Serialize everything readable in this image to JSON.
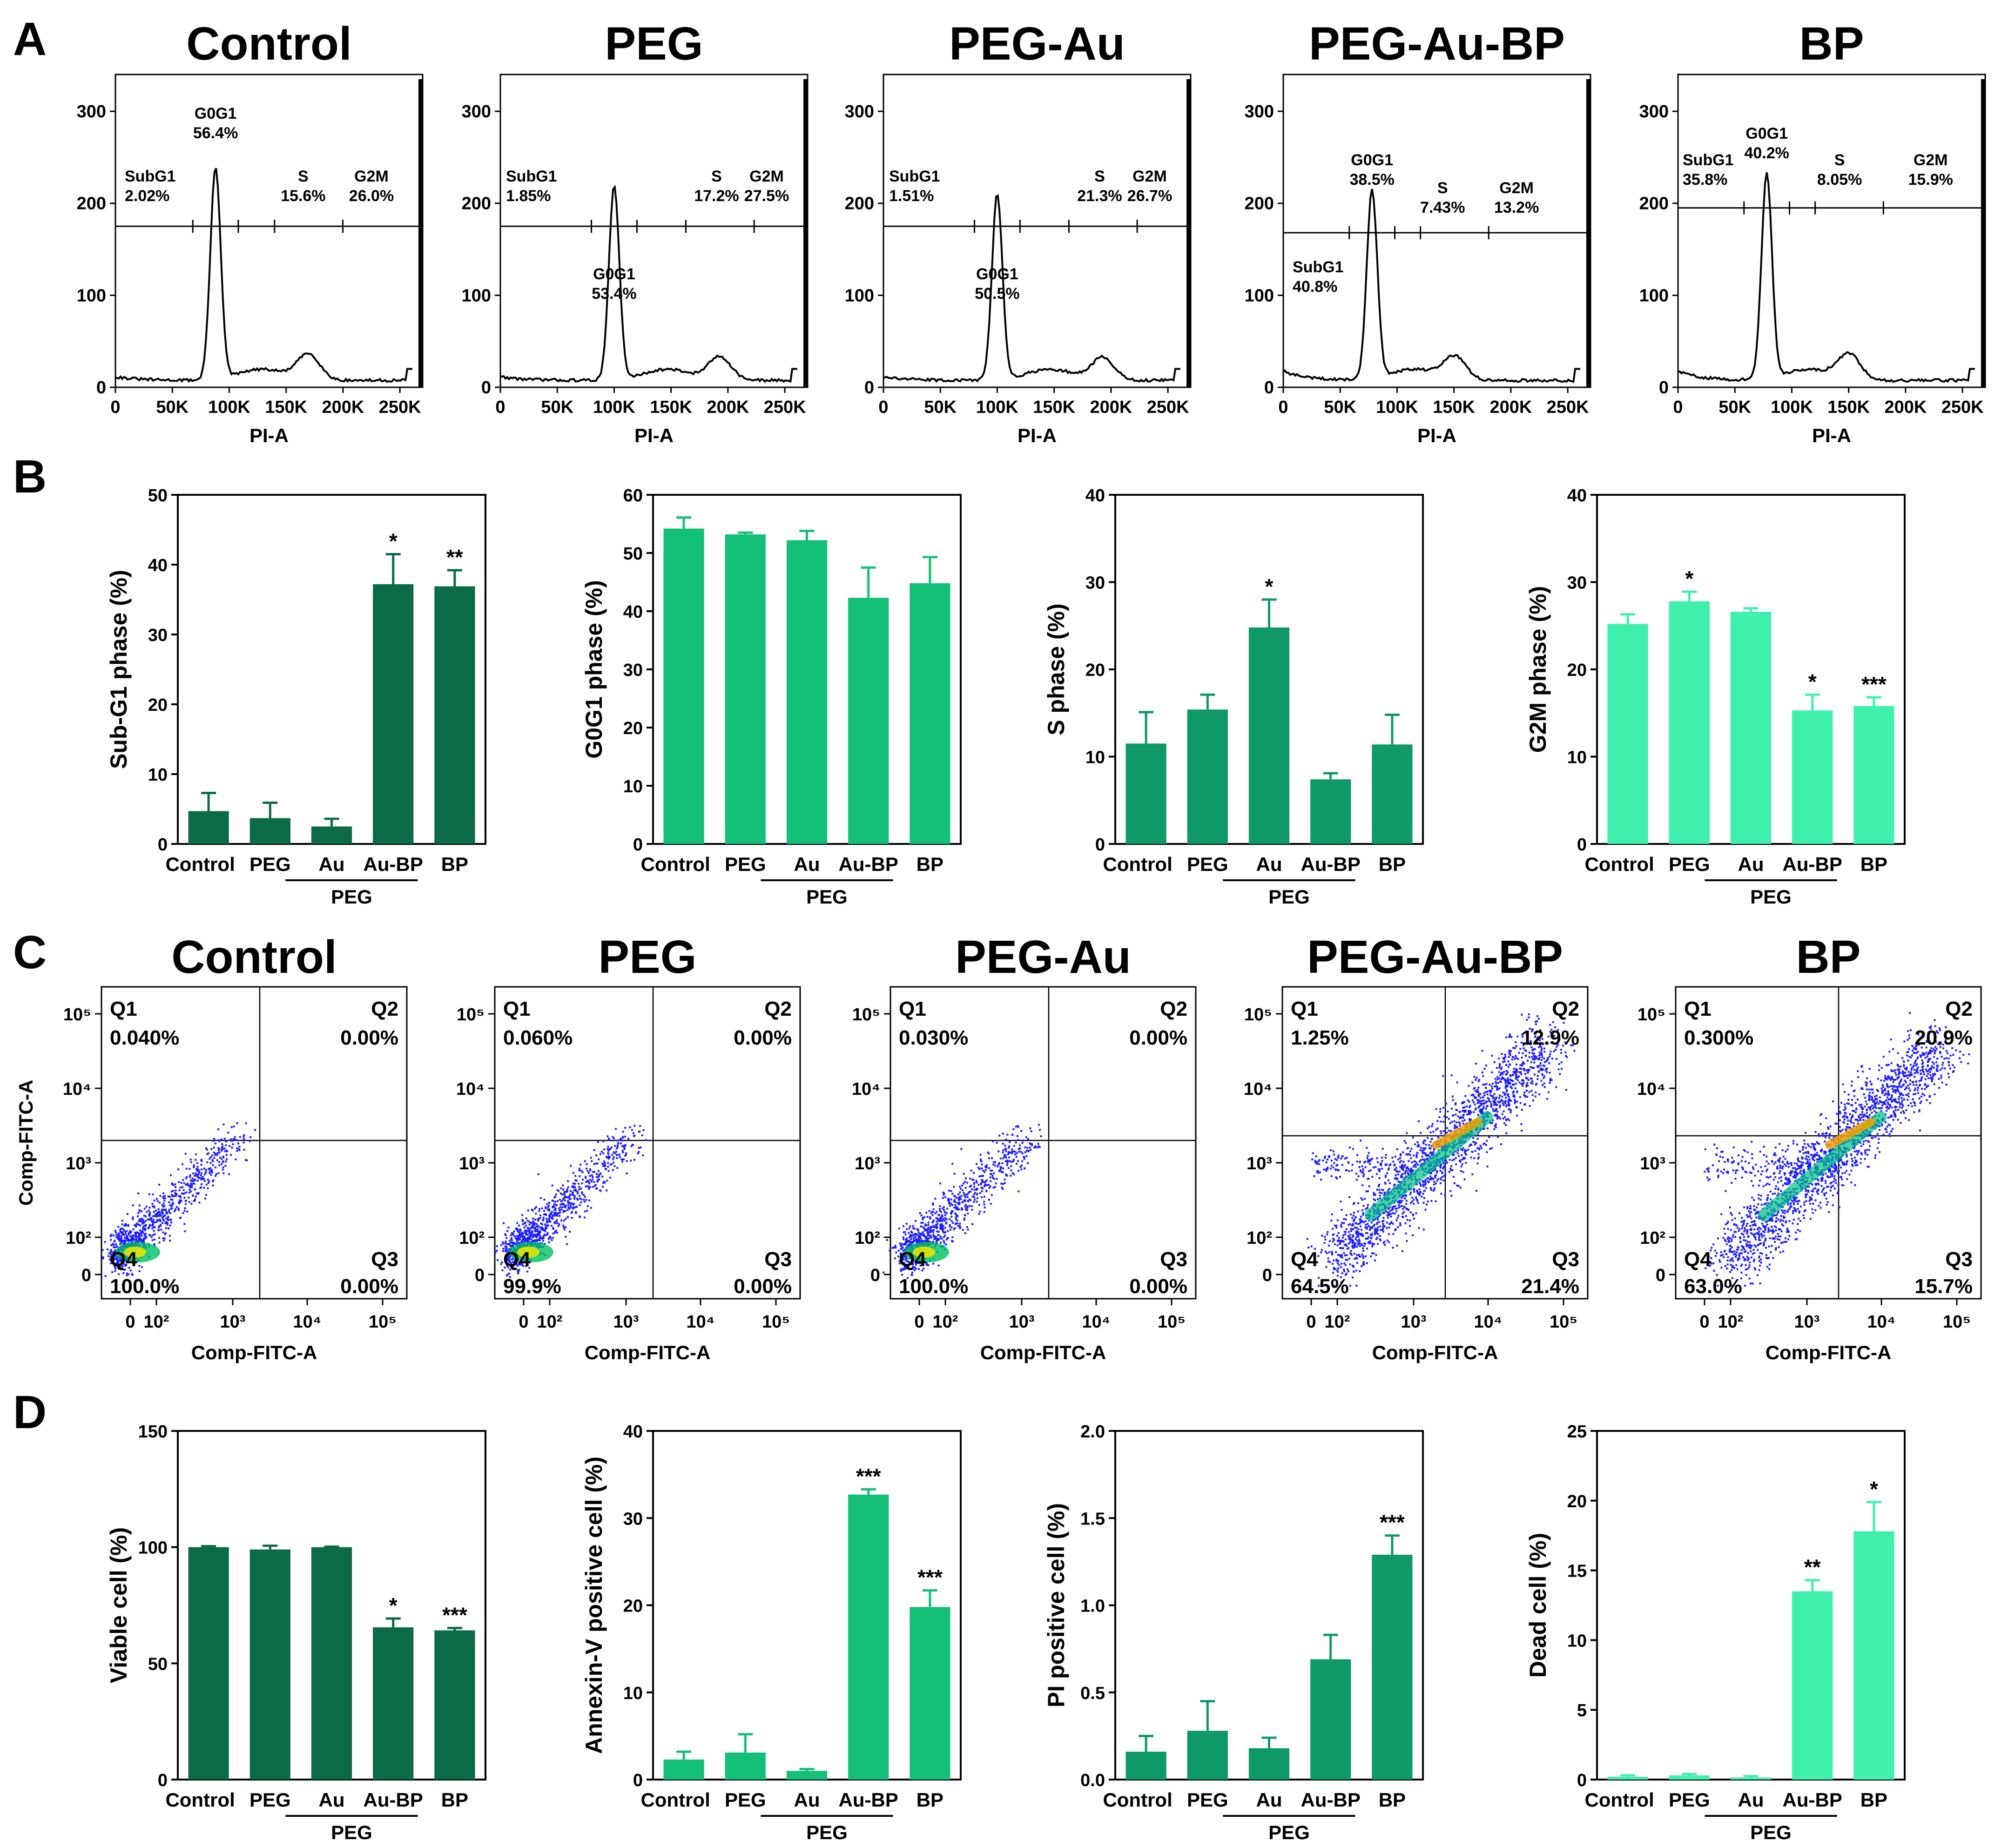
{
  "panel_letters": [
    "A",
    "B",
    "C",
    "D"
  ],
  "colors": {
    "dark_green": "#0b6b47",
    "mid_green": "#0f9966",
    "green": "#14c078",
    "light_green": "#3ff0ad",
    "axis": "#000000",
    "dot_blue": "#1a1aff"
  },
  "chart_data": [
    {
      "id": "A",
      "type": "histogram",
      "xlabel": "PI-A",
      "x_ticks": [
        "0",
        "50K",
        "100K",
        "150K",
        "200K",
        "250K"
      ],
      "y_ticks": [
        "0",
        "100",
        "200",
        "300"
      ],
      "ylim": [
        0,
        340
      ],
      "panels": [
        {
          "title": "Control",
          "peak": 230,
          "peak_x": 88,
          "gate_y": 175,
          "gates": [
            {
              "label": "SubG1",
              "value": "2.02%"
            },
            {
              "label": "G0G1",
              "value": "56.4%"
            },
            {
              "label": "S",
              "value": "15.6%"
            },
            {
              "label": "G2M",
              "value": "26.0%"
            }
          ]
        },
        {
          "title": "PEG",
          "peak": 210,
          "peak_x": 100,
          "gate_y": 175,
          "gates": [
            {
              "label": "SubG1",
              "value": "1.85%"
            },
            {
              "label": "G0G1",
              "value": "53.4%"
            },
            {
              "label": "S",
              "value": "17.2%"
            },
            {
              "label": "G2M",
              "value": "27.5%"
            }
          ]
        },
        {
          "title": "PEG-Au",
          "peak": 202,
          "peak_x": 100,
          "gate_y": 175,
          "gates": [
            {
              "label": "SubG1",
              "value": "1.51%"
            },
            {
              "label": "G0G1",
              "value": "50.5%"
            },
            {
              "label": "S",
              "value": "21.3%"
            },
            {
              "label": "G2M",
              "value": "26.7%"
            }
          ]
        },
        {
          "title": "PEG-Au-BP",
          "peak": 205,
          "peak_x": 78,
          "gate_y": 168,
          "gates": [
            {
              "label": "SubG1",
              "value": "40.8%"
            },
            {
              "label": "G0G1",
              "value": "38.5%"
            },
            {
              "label": "S",
              "value": "7.43%"
            },
            {
              "label": "G2M",
              "value": "13.2%"
            }
          ]
        },
        {
          "title": "BP",
          "peak": 222,
          "peak_x": 78,
          "gate_y": 195,
          "gates": [
            {
              "label": "SubG1",
              "value": "35.8%"
            },
            {
              "label": "G0G1",
              "value": "40.2%"
            },
            {
              "label": "S",
              "value": "8.05%"
            },
            {
              "label": "G2M",
              "value": "15.9%"
            }
          ]
        }
      ]
    },
    {
      "id": "B",
      "type": "bar",
      "categories": [
        "Control",
        "PEG",
        "Au",
        "Au-BP",
        "BP"
      ],
      "group_label": "PEG",
      "charts": [
        {
          "ylabel": "Sub-G1 phase (%)",
          "ylim": [
            0,
            50
          ],
          "ticks": [
            0,
            10,
            20,
            30,
            40,
            50
          ],
          "tick_labels": [
            "0",
            "10",
            "20",
            "30",
            "40",
            "50"
          ],
          "values": [
            4.7,
            3.7,
            2.5,
            37.2,
            36.9
          ],
          "errors": [
            2.6,
            2.2,
            1.1,
            4.3,
            2.3
          ],
          "stars": [
            "",
            "",
            "",
            "*",
            "**"
          ],
          "color_key": "dark_green"
        },
        {
          "ylabel": "G0G1 phase (%)",
          "ylim": [
            0,
            60
          ],
          "ticks": [
            0,
            10,
            20,
            30,
            40,
            50,
            60
          ],
          "tick_labels": [
            "0",
            "10",
            "20",
            "30",
            "40",
            "50",
            "60"
          ],
          "values": [
            54.2,
            53.2,
            52.2,
            42.3,
            44.8
          ],
          "errors": [
            1.9,
            0.3,
            1.6,
            5.2,
            4.5
          ],
          "stars": [
            "",
            "",
            "",
            "",
            ""
          ],
          "color_key": "green"
        },
        {
          "ylabel": "S phase (%)",
          "ylim": [
            0,
            40
          ],
          "ticks": [
            0,
            10,
            20,
            30,
            40
          ],
          "tick_labels": [
            "0",
            "10",
            "20",
            "30",
            "40"
          ],
          "values": [
            11.5,
            15.4,
            24.8,
            7.4,
            11.4
          ],
          "errors": [
            3.6,
            1.7,
            3.2,
            0.7,
            3.4
          ],
          "stars": [
            "",
            "",
            "*",
            "",
            ""
          ],
          "color_key": "mid_green"
        },
        {
          "ylabel": "G2M phase (%)",
          "ylim": [
            0,
            40
          ],
          "ticks": [
            0,
            10,
            20,
            30,
            40
          ],
          "tick_labels": [
            "0",
            "10",
            "20",
            "30",
            "40"
          ],
          "values": [
            25.2,
            27.8,
            26.6,
            15.3,
            15.8
          ],
          "errors": [
            1.1,
            1.1,
            0.4,
            1.8,
            1.0
          ],
          "stars": [
            "",
            "*",
            "",
            "*",
            "***"
          ],
          "color_key": "light_green"
        }
      ]
    },
    {
      "id": "C",
      "type": "scatter",
      "xlabel": "Comp-FITC-A",
      "ylabel": "Comp-FITC-A",
      "x_ticks": [
        "0",
        "10²",
        "10³",
        "10⁴",
        "10⁵"
      ],
      "y_ticks": [
        "0",
        "10²",
        "10³",
        "10⁴",
        "10⁵"
      ],
      "panels": [
        {
          "title": "Control",
          "q1": "0.040%",
          "q2": "0.00%",
          "q3": "0.00%",
          "q4": "100.0%",
          "density": "low"
        },
        {
          "title": "PEG",
          "q1": "0.060%",
          "q2": "0.00%",
          "q3": "0.00%",
          "q4": "99.9%",
          "density": "low"
        },
        {
          "title": "PEG-Au",
          "q1": "0.030%",
          "q2": "0.00%",
          "q3": "0.00%",
          "q4": "100.0%",
          "density": "low"
        },
        {
          "title": "PEG-Au-BP",
          "q1": "1.25%",
          "q2": "12.9%",
          "q3": "21.4%",
          "q4": "64.5%",
          "density": "high"
        },
        {
          "title": "BP",
          "q1": "0.300%",
          "q2": "20.9%",
          "q3": "15.7%",
          "q4": "63.0%",
          "density": "high"
        }
      ],
      "quadrant_labels": [
        "Q1",
        "Q2",
        "Q3",
        "Q4"
      ]
    },
    {
      "id": "D",
      "type": "bar",
      "categories": [
        "Control",
        "PEG",
        "Au",
        "Au-BP",
        "BP"
      ],
      "group_label": "PEG",
      "charts": [
        {
          "ylabel": "Viable cell (%)",
          "ylim": [
            0,
            150
          ],
          "ticks": [
            0,
            50,
            100,
            150
          ],
          "tick_labels": [
            "0",
            "50",
            "100",
            "150"
          ],
          "values": [
            100.0,
            99.0,
            100.0,
            65.5,
            64.2
          ],
          "errors": [
            0.4,
            1.6,
            0.2,
            3.8,
            1.0
          ],
          "stars": [
            "",
            "",
            "",
            "*",
            "***"
          ],
          "color_key": "dark_green"
        },
        {
          "ylabel": "Annexin-V positive cell (%)",
          "ylim": [
            0,
            40
          ],
          "ticks": [
            0,
            10,
            20,
            30,
            40
          ],
          "tick_labels": [
            "0",
            "10",
            "20",
            "30",
            "40"
          ],
          "values": [
            2.3,
            3.1,
            1.0,
            32.7,
            19.8
          ],
          "errors": [
            0.9,
            2.1,
            0.2,
            0.6,
            1.9
          ],
          "stars": [
            "",
            "",
            "",
            "***",
            "***"
          ],
          "color_key": "green"
        },
        {
          "ylabel": "PI positive cell (%)",
          "ylim": [
            0,
            2.0
          ],
          "ticks": [
            0,
            0.5,
            1.0,
            1.5,
            2.0
          ],
          "tick_labels": [
            "0.0",
            "0.5",
            "1.0",
            "1.5",
            "2.0"
          ],
          "values": [
            0.16,
            0.28,
            0.18,
            0.69,
            1.29
          ],
          "errors": [
            0.09,
            0.17,
            0.06,
            0.14,
            0.11
          ],
          "stars": [
            "",
            "",
            "",
            "",
            "***"
          ],
          "color_key": "mid_green"
        },
        {
          "ylabel": "Dead cell (%)",
          "ylim": [
            0,
            25
          ],
          "ticks": [
            0,
            5,
            10,
            15,
            20,
            25
          ],
          "tick_labels": [
            "0",
            "5",
            "10",
            "15",
            "20",
            "25"
          ],
          "values": [
            0.2,
            0.3,
            0.15,
            13.5,
            17.8
          ],
          "errors": [
            0.1,
            0.1,
            0.1,
            0.8,
            2.1
          ],
          "stars": [
            "",
            "",
            "",
            "**",
            "*"
          ],
          "color_key": "light_green"
        }
      ]
    }
  ]
}
